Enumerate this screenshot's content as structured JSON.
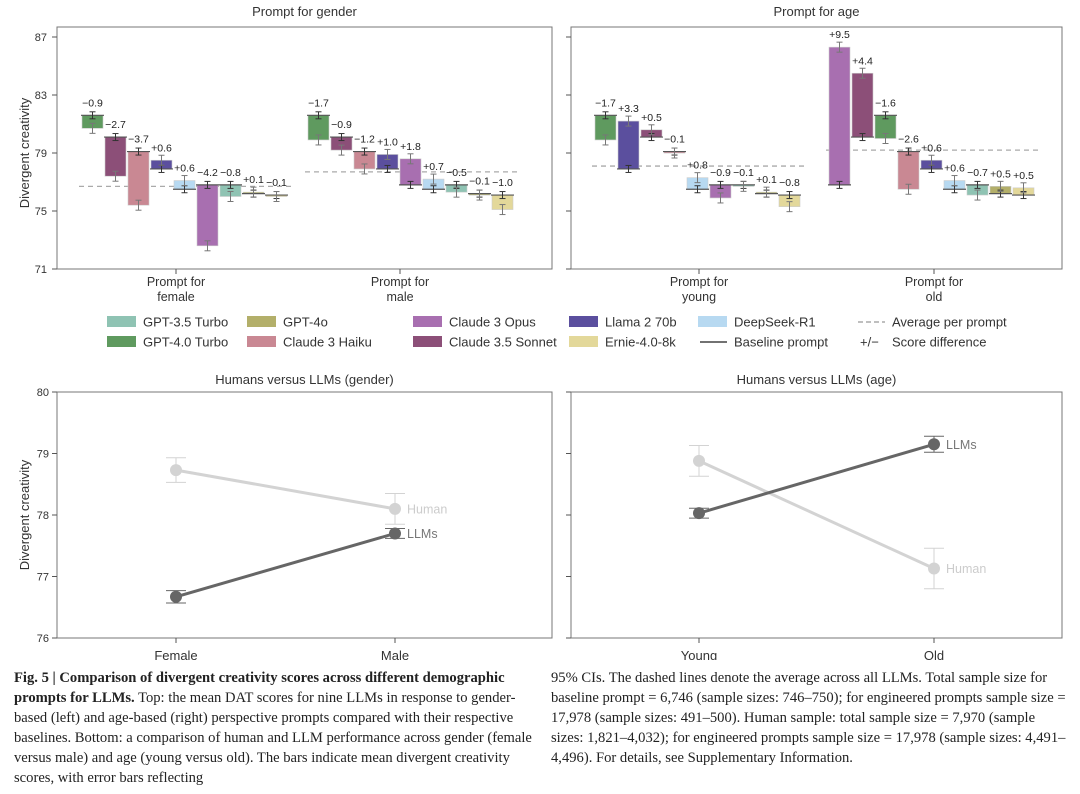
{
  "models": [
    {
      "key": "gpt35",
      "name": "GPT-3.5 Turbo",
      "color": "#8fc3b3"
    },
    {
      "key": "gpt4t",
      "name": "GPT-4.0 Turbo",
      "color": "#5f9a5f"
    },
    {
      "key": "gpt4o",
      "name": "GPT-4o",
      "color": "#b3af6a"
    },
    {
      "key": "haiku",
      "name": "Claude 3 Haiku",
      "color": "#c98893"
    },
    {
      "key": "opus",
      "name": "Claude 3 Opus",
      "color": "#a86fb0"
    },
    {
      "key": "sonnet",
      "name": "Claude 3.5 Sonnet",
      "color": "#8c4f78"
    },
    {
      "key": "llama",
      "name": "Llama 2 70b",
      "color": "#5b4f9e"
    },
    {
      "key": "ernie",
      "name": "Ernie-4.0-8k",
      "color": "#e3d89a"
    },
    {
      "key": "deepseek",
      "name": "DeepSeek-R1",
      "color": "#b7d9f1"
    }
  ],
  "legend": {
    "items": [
      {
        "label": "GPT-3.5 Turbo",
        "model": "gpt35"
      },
      {
        "label": "GPT-4.0 Turbo",
        "model": "gpt4t"
      },
      {
        "label": "GPT-4o",
        "model": "gpt4o"
      },
      {
        "label": "Claude 3 Haiku",
        "model": "haiku"
      },
      {
        "label": "Claude 3 Opus",
        "model": "opus"
      },
      {
        "label": "Claude 3.5 Sonnet",
        "model": "sonnet"
      },
      {
        "label": "Llama 2 70b",
        "model": "llama"
      },
      {
        "label": "Ernie-4.0-8k",
        "model": "ernie"
      },
      {
        "label": "DeepSeek-R1",
        "model": "deepseek"
      }
    ],
    "average_label": "Average per prompt",
    "baseline_label": "Baseline prompt",
    "diff_symbol": "+/−",
    "diff_label": "Score difference"
  },
  "chart_data": [
    {
      "type": "bar",
      "title": "Prompt for gender",
      "ylabel": "Divergent creativity",
      "ylim": [
        71,
        87
      ],
      "yticks": [
        71,
        75,
        79,
        83,
        87
      ],
      "groups": [
        {
          "label_line1": "Prompt for",
          "label_line2": "female",
          "average": 76.7,
          "bars": [
            {
              "model": "gpt4t",
              "baseline": 81.6,
              "value": 80.7,
              "diff": "−0.9"
            },
            {
              "model": "sonnet",
              "baseline": 80.1,
              "value": 77.4,
              "diff": "−2.7"
            },
            {
              "model": "haiku",
              "baseline": 79.1,
              "value": 75.4,
              "diff": "−3.7"
            },
            {
              "model": "llama",
              "baseline": 77.9,
              "value": 78.5,
              "diff": "+0.6"
            },
            {
              "model": "deepseek",
              "baseline": 76.5,
              "value": 77.1,
              "diff": "+0.6"
            },
            {
              "model": "opus",
              "baseline": 76.8,
              "value": 72.6,
              "diff": "−4.2"
            },
            {
              "model": "gpt35",
              "baseline": 76.8,
              "value": 76.0,
              "diff": "−0.8"
            },
            {
              "model": "gpt4o",
              "baseline": 76.2,
              "value": 76.3,
              "diff": "+0.1"
            },
            {
              "model": "ernie",
              "baseline": 76.1,
              "value": 76.0,
              "diff": "−0.1"
            }
          ]
        },
        {
          "label_line1": "Prompt for",
          "label_line2": "male",
          "average": 77.7,
          "bars": [
            {
              "model": "gpt4t",
              "baseline": 81.6,
              "value": 79.9,
              "diff": "−1.7"
            },
            {
              "model": "sonnet",
              "baseline": 80.1,
              "value": 79.2,
              "diff": "−0.9"
            },
            {
              "model": "haiku",
              "baseline": 79.1,
              "value": 77.9,
              "diff": "−1.2"
            },
            {
              "model": "llama",
              "baseline": 77.9,
              "value": 78.9,
              "diff": "+1.0"
            },
            {
              "model": "opus",
              "baseline": 76.8,
              "value": 78.6,
              "diff": "+1.8"
            },
            {
              "model": "deepseek",
              "baseline": 76.5,
              "value": 77.2,
              "diff": "+0.7"
            },
            {
              "model": "gpt35",
              "baseline": 76.8,
              "value": 76.3,
              "diff": "−0.5"
            },
            {
              "model": "gpt4o",
              "baseline": 76.2,
              "value": 76.1,
              "diff": "−0.1"
            },
            {
              "model": "ernie",
              "baseline": 76.1,
              "value": 75.1,
              "diff": "−1.0"
            }
          ]
        }
      ]
    },
    {
      "type": "bar",
      "title": "Prompt for age",
      "ylabel": "",
      "ylim": [
        71,
        87
      ],
      "yticks": [
        71,
        75,
        79,
        83,
        87
      ],
      "groups": [
        {
          "label_line1": "Prompt for",
          "label_line2": "young",
          "average": 78.1,
          "bars": [
            {
              "model": "gpt4t",
              "baseline": 81.6,
              "value": 79.9,
              "diff": "−1.7"
            },
            {
              "model": "llama",
              "baseline": 77.9,
              "value": 81.2,
              "diff": "+3.3"
            },
            {
              "model": "sonnet",
              "baseline": 80.1,
              "value": 80.6,
              "diff": "+0.5"
            },
            {
              "model": "haiku",
              "baseline": 79.1,
              "value": 79.0,
              "diff": "−0.1"
            },
            {
              "model": "deepseek",
              "baseline": 76.5,
              "value": 77.3,
              "diff": "+0.8"
            },
            {
              "model": "opus",
              "baseline": 76.8,
              "value": 75.9,
              "diff": "−0.9"
            },
            {
              "model": "gpt35",
              "baseline": 76.8,
              "value": 76.7,
              "diff": "−0.1"
            },
            {
              "model": "gpt4o",
              "baseline": 76.2,
              "value": 76.3,
              "diff": "+0.1"
            },
            {
              "model": "ernie",
              "baseline": 76.1,
              "value": 75.3,
              "diff": "−0.8"
            }
          ]
        },
        {
          "label_line1": "Prompt for",
          "label_line2": "old",
          "average": 79.2,
          "bars": [
            {
              "model": "opus",
              "baseline": 76.8,
              "value": 86.3,
              "diff": "+9.5"
            },
            {
              "model": "sonnet",
              "baseline": 80.1,
              "value": 84.5,
              "diff": "+4.4"
            },
            {
              "model": "gpt4t",
              "baseline": 81.6,
              "value": 80.0,
              "diff": "−1.6"
            },
            {
              "model": "haiku",
              "baseline": 79.1,
              "value": 76.5,
              "diff": "−2.6"
            },
            {
              "model": "llama",
              "baseline": 77.9,
              "value": 78.5,
              "diff": "+0.6"
            },
            {
              "model": "deepseek",
              "baseline": 76.5,
              "value": 77.1,
              "diff": "+0.6"
            },
            {
              "model": "gpt35",
              "baseline": 76.8,
              "value": 76.1,
              "diff": "−0.7"
            },
            {
              "model": "gpt4o",
              "baseline": 76.2,
              "value": 76.7,
              "diff": "+0.5"
            },
            {
              "model": "ernie",
              "baseline": 76.1,
              "value": 76.6,
              "diff": "+0.5"
            }
          ]
        }
      ]
    },
    {
      "type": "line",
      "title": "Humans versus LLMs (gender)",
      "ylabel": "Divergent creativity",
      "ylim": [
        76,
        80
      ],
      "yticks": [
        76,
        77,
        78,
        79,
        80
      ],
      "categories": [
        "Female",
        "Male"
      ],
      "series": [
        {
          "name": "Human",
          "values": [
            78.73,
            78.1
          ],
          "ci": [
            0.2,
            0.25
          ],
          "color": "#d3d3d3"
        },
        {
          "name": "LLMs",
          "values": [
            76.67,
            77.7
          ],
          "ci": [
            0.1,
            0.08
          ],
          "color": "#666666"
        }
      ]
    },
    {
      "type": "line",
      "title": "Humans versus LLMs (age)",
      "ylabel": "",
      "ylim": [
        76,
        80
      ],
      "yticks": [
        76,
        77,
        78,
        79,
        80
      ],
      "categories": [
        "Young",
        "Old"
      ],
      "series": [
        {
          "name": "Human",
          "values": [
            78.88,
            77.13
          ],
          "ci": [
            0.25,
            0.33
          ],
          "color": "#d3d3d3"
        },
        {
          "name": "LLMs",
          "values": [
            78.03,
            79.15
          ],
          "ci": [
            0.08,
            0.13
          ],
          "color": "#666666"
        }
      ]
    }
  ],
  "caption": {
    "fig_label": "Fig. 5 | Comparison of divergent creativity scores across different demographic prompts for LLMs.",
    "left_text": " Top: the mean DAT scores for nine LLMs in response to gender-based (left) and age-based (right) perspective prompts compared with their respective baselines. Bottom: a comparison of human and LLM performance across gender (female versus male) and age (young versus old). The bars indicate mean divergent creativity scores, with error bars reflecting",
    "right_text": "95% CIs. The dashed lines denote the average across all LLMs. Total sample size for baseline prompt = 6,746 (sample sizes: 746–750); for engineered prompts sample size = 17,978 (sample sizes: 491–500). Human sample: total sample size = 7,970 (sample sizes: 1,821–4,032); for engineered prompts sample size = 17,978 (sample sizes: 4,491–4,496). For details, see Supplementary Information."
  }
}
